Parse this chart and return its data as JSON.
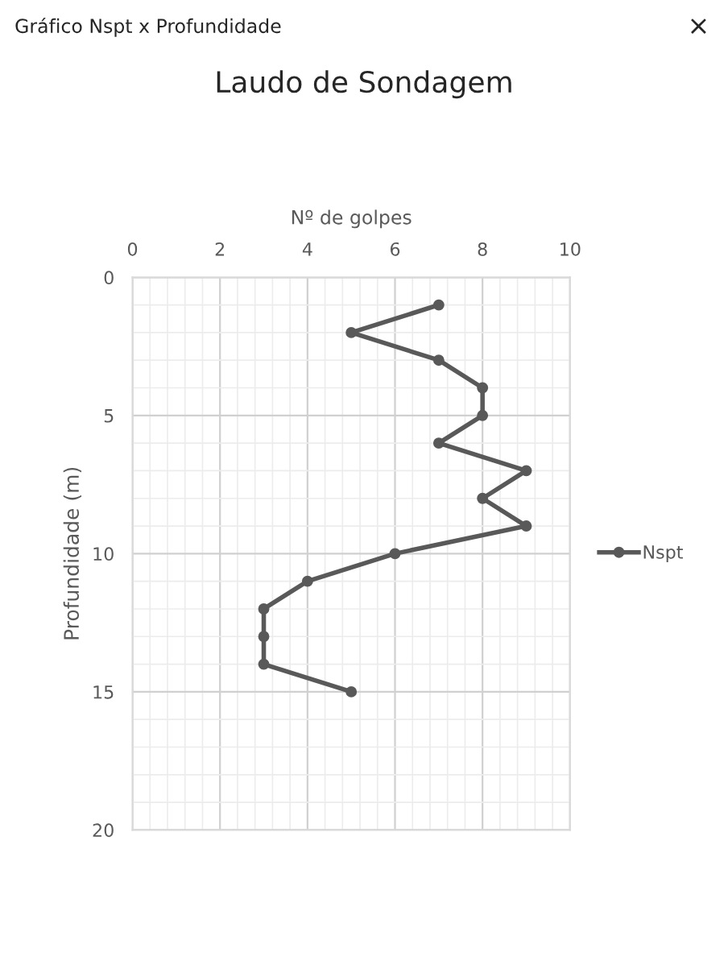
{
  "chart_data": {
    "type": "line",
    "title": "Laudo de Sondagem",
    "xlabel": "Nº de golpes",
    "ylabel": "Profundidade (m)",
    "annotations": [
      "Gráfico Nspt x Profundidade",
      "×"
    ],
    "series": [
      {
        "name": "Nspt",
        "color": "#595959",
        "x": [
          7,
          5,
          7,
          8,
          8,
          7,
          9,
          8,
          9,
          6,
          4,
          3,
          3,
          3,
          5
        ],
        "values": [
          1,
          2,
          3,
          4,
          5,
          6,
          7,
          8,
          9,
          10,
          11,
          12,
          13,
          14,
          15
        ]
      }
    ],
    "xlim": [
      0,
      10
    ],
    "xticks": [
      0,
      2,
      4,
      6,
      8,
      10
    ],
    "ylim": [
      20,
      0
    ],
    "yticks": [
      0,
      5,
      10,
      15,
      20
    ],
    "grid": true,
    "legend": "right",
    "marker": "circle",
    "line_style": "solid"
  }
}
